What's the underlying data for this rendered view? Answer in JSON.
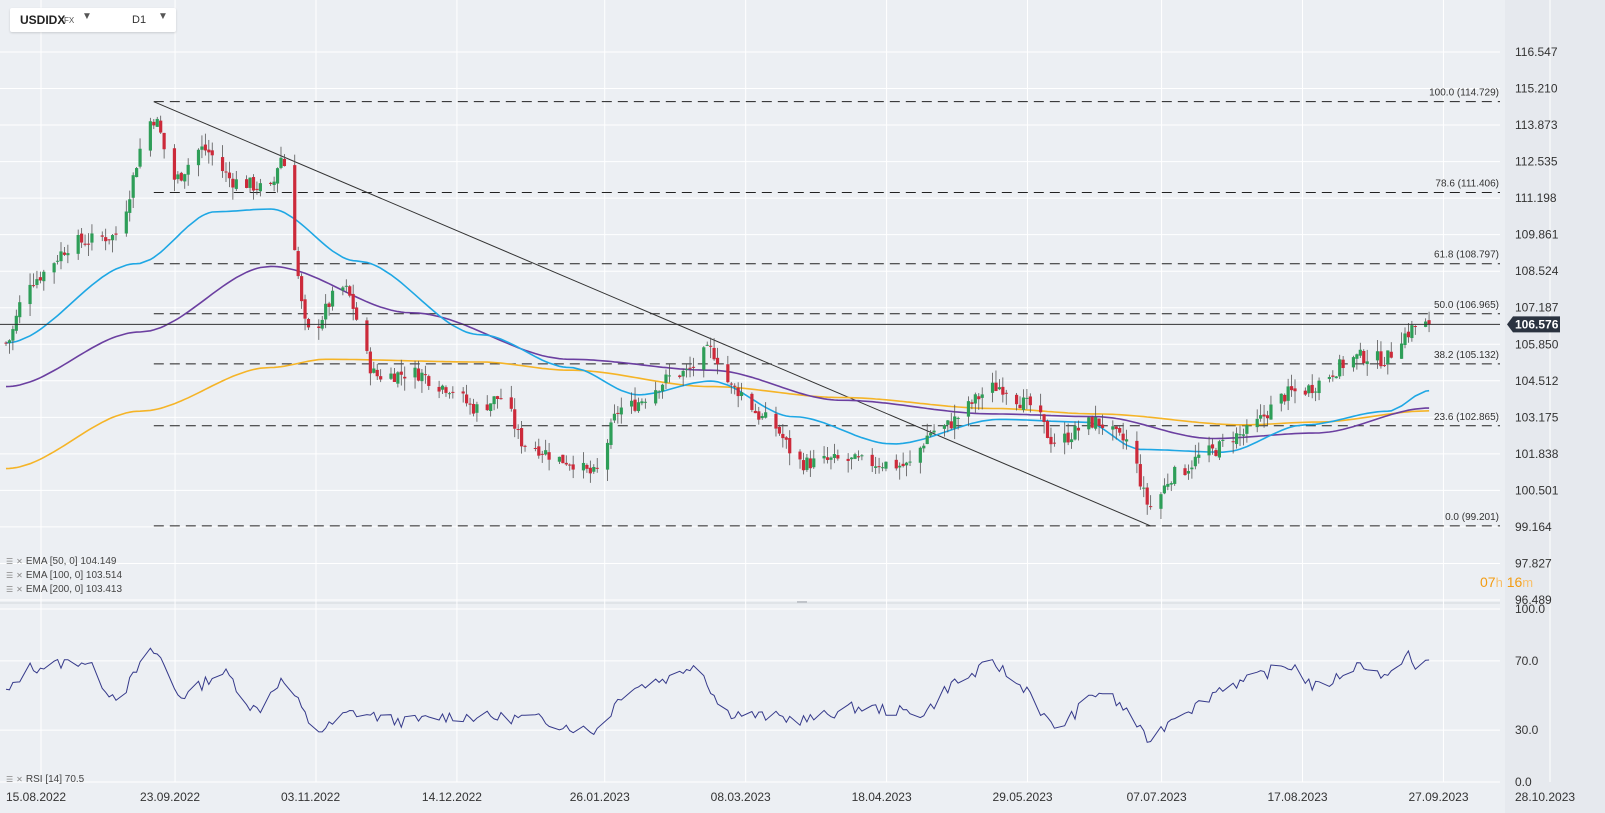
{
  "toolbar": {
    "symbol": "USDIDX",
    "market": "FX",
    "timeframe": "D1"
  },
  "timer": {
    "hours": "07",
    "h_unit": "h",
    "minutes": "16",
    "m_unit": "m"
  },
  "chart_data": [
    {
      "type": "candlestick",
      "title": "",
      "price_axis_labels": [
        "116.547",
        "115.210",
        "113.873",
        "112.535",
        "111.198",
        "109.861",
        "108.524",
        "107.187",
        "105.850",
        "104.512",
        "103.175",
        "101.838",
        "100.501",
        "99.164",
        "97.827",
        "96.489"
      ],
      "ylim": [
        96.489,
        116.547
      ],
      "last_price": "106.576",
      "date_axis_labels": [
        "15.08.2022",
        "23.09.2022",
        "03.11.2022",
        "14.12.2022",
        "26.01.2023",
        "08.03.2023",
        "18.04.2023",
        "29.05.2023",
        "07.07.2023",
        "17.08.2023",
        "27.09.2023",
        "28.10.2023"
      ],
      "bullish_color": "#2e9e58",
      "bearish_color": "#cc2a3a",
      "price_path_keypoints": [
        {
          "date": "15.08.2022",
          "close": 105.9
        },
        {
          "date": "22.08.2022",
          "close": 108.2
        },
        {
          "date": "05.09.2022",
          "close": 109.6
        },
        {
          "date": "15.09.2022",
          "close": 109.8
        },
        {
          "date": "27.09.2022",
          "close": 114.1
        },
        {
          "date": "03.10.2022",
          "close": 111.9
        },
        {
          "date": "11.10.2022",
          "close": 113.0
        },
        {
          "date": "21.10.2022",
          "close": 111.8
        },
        {
          "date": "31.10.2022",
          "close": 111.5
        },
        {
          "date": "03.11.2022",
          "close": 112.7
        },
        {
          "date": "11.11.2022",
          "close": 106.3
        },
        {
          "date": "21.11.2022",
          "close": 107.9
        },
        {
          "date": "01.12.2022",
          "close": 104.7
        },
        {
          "date": "12.12.2022",
          "close": 104.8
        },
        {
          "date": "21.12.2022",
          "close": 104.3
        },
        {
          "date": "30.12.2022",
          "close": 103.5
        },
        {
          "date": "06.01.2023",
          "close": 103.9
        },
        {
          "date": "13.01.2023",
          "close": 102.2
        },
        {
          "date": "25.01.2023",
          "close": 101.6
        },
        {
          "date": "02.02.2023",
          "close": 101.1
        },
        {
          "date": "10.02.2023",
          "close": 103.5
        },
        {
          "date": "28.02.2023",
          "close": 104.8
        },
        {
          "date": "08.03.2023",
          "close": 105.6
        },
        {
          "date": "15.03.2023",
          "close": 104.2
        },
        {
          "date": "24.03.2023",
          "close": 103.1
        },
        {
          "date": "04.04.2023",
          "close": 101.5
        },
        {
          "date": "14.04.2023",
          "close": 101.6
        },
        {
          "date": "26.04.2023",
          "close": 101.5
        },
        {
          "date": "04.05.2023",
          "close": 101.4
        },
        {
          "date": "12.05.2023",
          "close": 102.7
        },
        {
          "date": "31.05.2023",
          "close": 104.3
        },
        {
          "date": "09.06.2023",
          "close": 103.6
        },
        {
          "date": "16.06.2023",
          "close": 102.3
        },
        {
          "date": "28.06.2023",
          "close": 103.0
        },
        {
          "date": "07.07.2023",
          "close": 102.3
        },
        {
          "date": "14.07.2023",
          "close": 99.9
        },
        {
          "date": "21.07.2023",
          "close": 101.1
        },
        {
          "date": "31.07.2023",
          "close": 101.9
        },
        {
          "date": "08.08.2023",
          "close": 102.5
        },
        {
          "date": "25.08.2023",
          "close": 104.1
        },
        {
          "date": "14.09.2023",
          "close": 105.4
        },
        {
          "date": "20.09.2023",
          "close": 105.3
        },
        {
          "date": "26.09.2023",
          "close": 106.2
        },
        {
          "date": "29.09.2023",
          "close": 106.5
        },
        {
          "date": "03.10.2023",
          "close": 106.576
        }
      ],
      "ema50_keypoints": [
        {
          "date": "15.08.2022",
          "value": 105.9
        },
        {
          "date": "22.09.2022",
          "value": 108.8
        },
        {
          "date": "15.10.2022",
          "value": 110.7
        },
        {
          "date": "31.10.2022",
          "value": 110.8
        },
        {
          "date": "25.11.2022",
          "value": 108.9
        },
        {
          "date": "31.12.2022",
          "value": 106.2
        },
        {
          "date": "26.01.2023",
          "value": 105.0
        },
        {
          "date": "15.02.2023",
          "value": 104.0
        },
        {
          "date": "08.03.2023",
          "value": 104.5
        },
        {
          "date": "01.04.2023",
          "value": 103.2
        },
        {
          "date": "30.04.2023",
          "value": 102.2
        },
        {
          "date": "31.05.2023",
          "value": 103.1
        },
        {
          "date": "25.06.2023",
          "value": 103.0
        },
        {
          "date": "11.07.2023",
          "value": 102.0
        },
        {
          "date": "04.08.2023",
          "value": 101.9
        },
        {
          "date": "28.08.2023",
          "value": 102.9
        },
        {
          "date": "21.09.2023",
          "value": 103.4
        },
        {
          "date": "03.10.2023",
          "value": 104.149
        }
      ],
      "ema100_keypoints": [
        {
          "date": "15.08.2022",
          "value": 104.3
        },
        {
          "date": "23.09.2022",
          "value": 106.3
        },
        {
          "date": "31.10.2022",
          "value": 108.7
        },
        {
          "date": "11.12.2022",
          "value": 107.0
        },
        {
          "date": "26.01.2023",
          "value": 105.3
        },
        {
          "date": "08.03.2023",
          "value": 104.9
        },
        {
          "date": "15.04.2023",
          "value": 103.8
        },
        {
          "date": "29.05.2023",
          "value": 103.3
        },
        {
          "date": "28.06.2023",
          "value": 103.2
        },
        {
          "date": "01.08.2023",
          "value": 102.4
        },
        {
          "date": "31.08.2023",
          "value": 102.6
        },
        {
          "date": "03.10.2023",
          "value": 103.514
        }
      ],
      "ema200_keypoints": [
        {
          "date": "15.08.2022",
          "value": 101.3
        },
        {
          "date": "23.09.2022",
          "value": 103.4
        },
        {
          "date": "31.10.2022",
          "value": 105.0
        },
        {
          "date": "16.11.2022",
          "value": 105.3
        },
        {
          "date": "31.12.2022",
          "value": 105.2
        },
        {
          "date": "26.01.2023",
          "value": 104.9
        },
        {
          "date": "08.03.2023",
          "value": 104.3
        },
        {
          "date": "15.04.2023",
          "value": 103.9
        },
        {
          "date": "29.05.2023",
          "value": 103.5
        },
        {
          "date": "28.06.2023",
          "value": 103.3
        },
        {
          "date": "10.08.2023",
          "value": 102.9
        },
        {
          "date": "31.08.2023",
          "value": 103.0
        },
        {
          "date": "03.10.2023",
          "value": 103.413
        }
      ],
      "fibonacci": [
        {
          "label": "100.0 (114.729)",
          "value": 114.729
        },
        {
          "label": "78.6 (111.406)",
          "value": 111.406
        },
        {
          "label": "61.8 (108.797)",
          "value": 108.797
        },
        {
          "label": "50.0 (106.965)",
          "value": 106.965
        },
        {
          "label": "38.2 (105.132)",
          "value": 105.132
        },
        {
          "label": "23.6 (102.865)",
          "value": 102.865
        },
        {
          "label": "0.0 (99.201)",
          "value": 99.201
        }
      ],
      "trendline": [
        {
          "date": "27.09.2022",
          "value": 114.729
        },
        {
          "date": "14.07.2023",
          "value": 99.201
        }
      ],
      "legend": [
        {
          "text": "EMA  [50,  0]  104.149",
          "color": "#1ea7e4"
        },
        {
          "text": "EMA  [100,  0]  103.514",
          "color": "#6b3fa0"
        },
        {
          "text": "EMA  [200,  0]  103.413",
          "color": "#f5b427"
        }
      ]
    },
    {
      "type": "line",
      "title": "",
      "axis_labels": [
        "100.0",
        "70.0",
        "30.0",
        "0.0"
      ],
      "ylim": [
        0,
        100
      ],
      "legend": "RSI  [14]  70.5",
      "rsi_keypoints": [
        {
          "date": "15.08.2022",
          "value": 52
        },
        {
          "date": "22.08.2022",
          "value": 66
        },
        {
          "date": "06.09.2022",
          "value": 70
        },
        {
          "date": "16.09.2022",
          "value": 50
        },
        {
          "date": "27.09.2022",
          "value": 75
        },
        {
          "date": "05.10.2022",
          "value": 50
        },
        {
          "date": "17.10.2022",
          "value": 63
        },
        {
          "date": "27.10.2022",
          "value": 42
        },
        {
          "date": "03.11.2022",
          "value": 58
        },
        {
          "date": "14.11.2022",
          "value": 30
        },
        {
          "date": "24.11.2022",
          "value": 40
        },
        {
          "date": "09.12.2022",
          "value": 35
        },
        {
          "date": "23.12.2022",
          "value": 38
        },
        {
          "date": "13.01.2023",
          "value": 37
        },
        {
          "date": "02.02.2023",
          "value": 30
        },
        {
          "date": "13.02.2023",
          "value": 55
        },
        {
          "date": "24.02.2023",
          "value": 60
        },
        {
          "date": "03.03.2023",
          "value": 68
        },
        {
          "date": "13.03.2023",
          "value": 40
        },
        {
          "date": "24.03.2023",
          "value": 38
        },
        {
          "date": "04.04.2023",
          "value": 36
        },
        {
          "date": "20.04.2023",
          "value": 43
        },
        {
          "date": "08.05.2023",
          "value": 40
        },
        {
          "date": "19.05.2023",
          "value": 58
        },
        {
          "date": "29.05.2023",
          "value": 68
        },
        {
          "date": "07.06.2023",
          "value": 55
        },
        {
          "date": "16.06.2023",
          "value": 32
        },
        {
          "date": "30.06.2023",
          "value": 52
        },
        {
          "date": "07.07.2023",
          "value": 42
        },
        {
          "date": "13.07.2023",
          "value": 25
        },
        {
          "date": "24.07.2023",
          "value": 42
        },
        {
          "date": "07.08.2023",
          "value": 57
        },
        {
          "date": "24.08.2023",
          "value": 67
        },
        {
          "date": "31.08.2023",
          "value": 55
        },
        {
          "date": "14.09.2023",
          "value": 68
        },
        {
          "date": "21.09.2023",
          "value": 60
        },
        {
          "date": "27.09.2023",
          "value": 75
        },
        {
          "date": "29.09.2023",
          "value": 63
        },
        {
          "date": "03.10.2023",
          "value": 70.5
        }
      ]
    }
  ]
}
